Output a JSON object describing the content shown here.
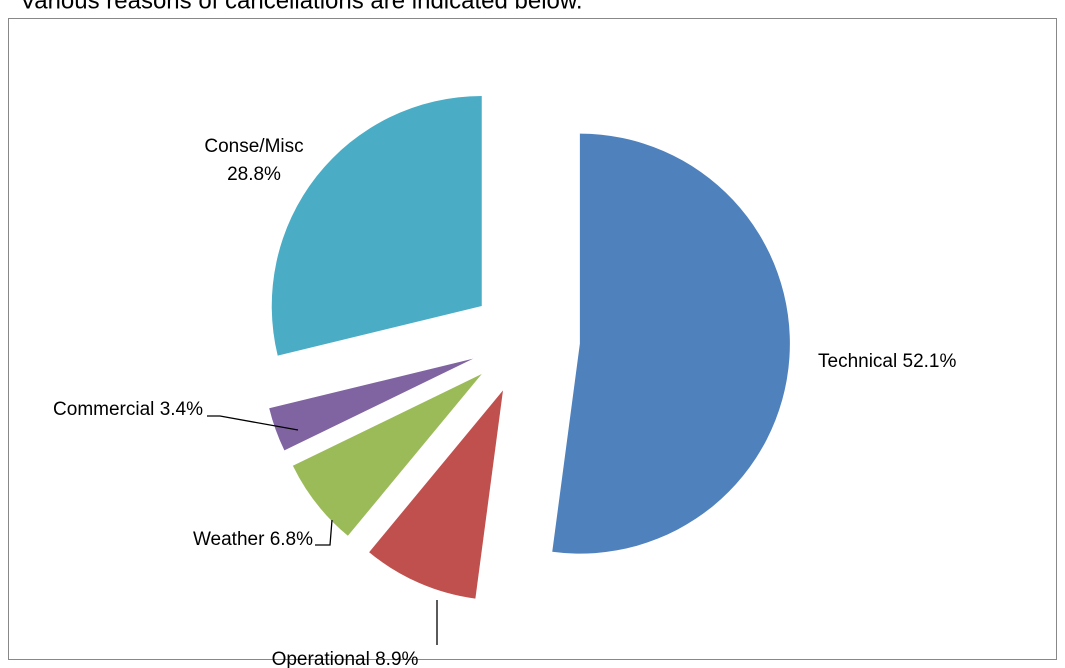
{
  "chart_data": {
    "type": "pie",
    "title": "Various reasons of cancellations are indicated below.",
    "categories": [
      "Technical",
      "Operational",
      "Weather",
      "Commercial",
      "Conse/Misc"
    ],
    "values": [
      52.1,
      8.9,
      6.8,
      3.4,
      28.8
    ],
    "value_labels": [
      "52.1%",
      "8.9%",
      "6.8%",
      "3.4%",
      "28.8%"
    ],
    "colors": [
      "#4f81bd",
      "#c0504d",
      "#9bbb59",
      "#8064a2",
      "#4bacc6"
    ]
  }
}
